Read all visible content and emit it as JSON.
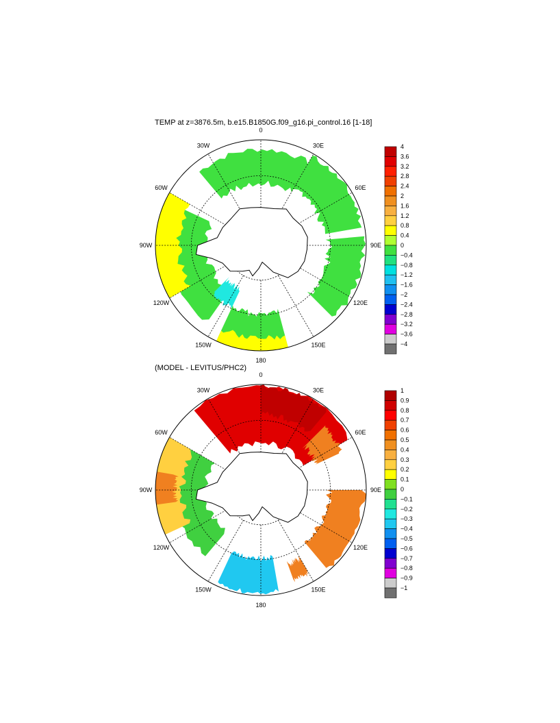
{
  "top_panel": {
    "title": "TEMP at z=3876.5m, b.e15.B1850G.f09_g16.pi_control.16 [1-18]",
    "longitude_labels": [
      "0",
      "30E",
      "60E",
      "90E",
      "120E",
      "150E",
      "180",
      "150W",
      "120W",
      "90W",
      "60W",
      "30W"
    ],
    "colorbar": {
      "labels": [
        "4",
        "3.6",
        "3.2",
        "2.8",
        "2.4",
        "2",
        "1.6",
        "1.2",
        "0.8",
        "0.4",
        "0",
        "−0.4",
        "−0.8",
        "−1.2",
        "−1.6",
        "−2",
        "−2.4",
        "−2.8",
        "−3.2",
        "−3.6",
        "−4"
      ],
      "colors": [
        "#c00000",
        "#e00000",
        "#ff2000",
        "#f04000",
        "#f07000",
        "#f09020",
        "#f8b040",
        "#ffd040",
        "#ffff00",
        "#b0ff30",
        "#40e040",
        "#20e080",
        "#00e0e0",
        "#20c0f0",
        "#1090f0",
        "#0060f0",
        "#0000d0",
        "#8000d0",
        "#e000e0",
        "#cccccc",
        "#707070"
      ]
    }
  },
  "bottom_panel": {
    "title": "(MODEL - LEVITUS/PHC2)",
    "longitude_labels": [
      "0",
      "30E",
      "60E",
      "90E",
      "120E",
      "150E",
      "180",
      "150W",
      "120W",
      "90W",
      "60W",
      "30W"
    ],
    "colorbar": {
      "labels": [
        "1",
        "0.9",
        "0.8",
        "0.7",
        "0.6",
        "0.5",
        "0.4",
        "0.3",
        "0.2",
        "0.1",
        "0",
        "−0.1",
        "−0.2",
        "−0.3",
        "−0.4",
        "−0.5",
        "−0.6",
        "−0.7",
        "−0.8",
        "−0.9",
        "−1"
      ],
      "colors": [
        "#b00000",
        "#d00000",
        "#ff0000",
        "#f04000",
        "#f07000",
        "#f09020",
        "#f8b040",
        "#ffd040",
        "#ffff00",
        "#80e020",
        "#40d040",
        "#20e090",
        "#20e8e0",
        "#20c8f0",
        "#1090f0",
        "#0060f0",
        "#0000d0",
        "#8000d0",
        "#e000e0",
        "#cccccc",
        "#707070"
      ]
    }
  },
  "map_colors": {
    "land_outline": "#000000",
    "ocean_missing": "#ffffff",
    "top_main": "#40e040",
    "top_warm": "#ffff00",
    "top_cool": "#20e8e0",
    "bottom_red": "#e00000",
    "bottom_darkred": "#c00000",
    "bottom_orange": "#f08020",
    "bottom_yellow": "#ffd040",
    "bottom_green": "#40d040",
    "bottom_cyan": "#20c8f0"
  }
}
